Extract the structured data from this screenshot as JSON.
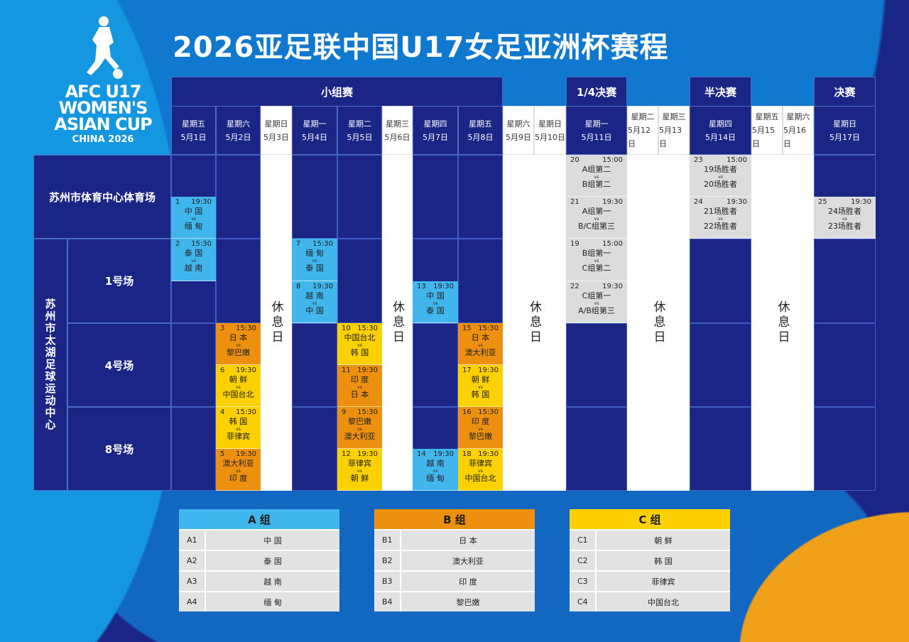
{
  "title": "2026亚足联中国U17女足亚洲杯赛程",
  "logo": {
    "line1": "AFC U17",
    "line2": "WOMEN'S",
    "line3": "ASIAN CUP",
    "line4": "CHINA 2026"
  },
  "colors": {
    "navy": "#1b2585",
    "group_a": "#41b6ec",
    "group_b": "#ee900f",
    "group_c": "#fdd100",
    "knockout": "#dcdcdc",
    "rest": "#ffffff"
  },
  "rest_label": "休息日",
  "vs_label": "vs",
  "dates": [
    {
      "week": "星期五",
      "date": "5月1日",
      "rest": false
    },
    {
      "week": "星期六",
      "date": "5月2日",
      "rest": false
    },
    {
      "week": "星期日",
      "date": "5月3日",
      "rest": true
    },
    {
      "week": "星期一",
      "date": "5月4日",
      "rest": false
    },
    {
      "week": "星期二",
      "date": "5月5日",
      "rest": false
    },
    {
      "week": "星期三",
      "date": "5月6日",
      "rest": true
    },
    {
      "week": "星期四",
      "date": "5月7日",
      "rest": false
    },
    {
      "week": "星期五",
      "date": "5月8日",
      "rest": false
    },
    {
      "week": "星期六",
      "date": "5月9日",
      "rest": true
    },
    {
      "week": "星期日",
      "date": "5月10日",
      "rest": true
    },
    {
      "week": "星期一",
      "date": "5月11日",
      "rest": false
    },
    {
      "week": "星期二",
      "date": "5月12日",
      "rest": true
    },
    {
      "week": "星期三",
      "date": "5月13日",
      "rest": true
    },
    {
      "week": "星期四",
      "date": "5月14日",
      "rest": false
    },
    {
      "week": "星期五",
      "date": "5月15日",
      "rest": true
    },
    {
      "week": "星期六",
      "date": "5月16日",
      "rest": true
    },
    {
      "week": "星期日",
      "date": "5月17日",
      "rest": false
    }
  ],
  "stages": [
    {
      "label": "小组赛",
      "from": "5月1日",
      "to": "5月8日"
    },
    {
      "label": "1/4决赛",
      "from": "5月11日",
      "to": "5月11日"
    },
    {
      "label": "半决赛",
      "from": "5月14日",
      "to": "5月14日"
    },
    {
      "label": "决赛",
      "from": "5月17日",
      "to": "5月17日"
    }
  ],
  "venues": {
    "stadium": "苏州市体育中心体育场",
    "complex": "苏州市太湖足球运动中心",
    "pitches": [
      "1号场",
      "4号场",
      "8号场"
    ]
  },
  "matches": [
    {
      "no": "1",
      "time": "19:30",
      "date": "5月1日",
      "venue": "苏州市体育中心体育场",
      "home": "中 国",
      "away": "缅 甸",
      "group": "A"
    },
    {
      "no": "2",
      "time": "15:30",
      "date": "5月1日",
      "venue": "1号场",
      "home": "泰 国",
      "away": "越 南",
      "group": "A"
    },
    {
      "no": "3",
      "time": "15:30",
      "date": "5月2日",
      "venue": "4号场",
      "home": "日 本",
      "away": "黎巴嫩",
      "group": "B"
    },
    {
      "no": "6",
      "time": "19:30",
      "date": "5月2日",
      "venue": "4号场",
      "home": "朝 鲜",
      "away": "中国台北",
      "group": "C"
    },
    {
      "no": "4",
      "time": "15:30",
      "date": "5月2日",
      "venue": "8号场",
      "home": "韩 国",
      "away": "菲律宾",
      "group": "C"
    },
    {
      "no": "5",
      "time": "19:30",
      "date": "5月2日",
      "venue": "8号场",
      "home": "澳大利亚",
      "away": "印 度",
      "group": "B"
    },
    {
      "no": "7",
      "time": "15:30",
      "date": "5月4日",
      "venue": "1号场",
      "home": "缅 甸",
      "away": "泰 国",
      "group": "A"
    },
    {
      "no": "8",
      "time": "19:30",
      "date": "5月4日",
      "venue": "1号场",
      "home": "越 南",
      "away": "中 国",
      "group": "A"
    },
    {
      "no": "10",
      "time": "15:30",
      "date": "5月5日",
      "venue": "4号场",
      "home": "中国台北",
      "away": "韩 国",
      "group": "C"
    },
    {
      "no": "11",
      "time": "19:30",
      "date": "5月5日",
      "venue": "4号场",
      "home": "印 度",
      "away": "日 本",
      "group": "B"
    },
    {
      "no": "9",
      "time": "15:30",
      "date": "5月5日",
      "venue": "8号场",
      "home": "黎巴嫩",
      "away": "澳大利亚",
      "group": "B"
    },
    {
      "no": "12",
      "time": "19:30",
      "date": "5月5日",
      "venue": "8号场",
      "home": "菲律宾",
      "away": "朝 鲜",
      "group": "C"
    },
    {
      "no": "13",
      "time": "19:30",
      "date": "5月7日",
      "venue": "1号场",
      "home": "中 国",
      "away": "泰 国",
      "group": "A"
    },
    {
      "no": "14",
      "time": "19:30",
      "date": "5月7日",
      "venue": "8号场",
      "home": "越 南",
      "away": "缅 甸",
      "group": "A"
    },
    {
      "no": "15",
      "time": "15:30",
      "date": "5月8日",
      "venue": "4号场",
      "home": "日 本",
      "away": "澳大利亚",
      "group": "B"
    },
    {
      "no": "17",
      "time": "19:30",
      "date": "5月8日",
      "venue": "4号场",
      "home": "朝 鲜",
      "away": "韩 国",
      "group": "C"
    },
    {
      "no": "16",
      "time": "15:30",
      "date": "5月8日",
      "venue": "8号场",
      "home": "印 度",
      "away": "黎巴嫩",
      "group": "B"
    },
    {
      "no": "18",
      "time": "19:30",
      "date": "5月8日",
      "venue": "8号场",
      "home": "菲律宾",
      "away": "中国台北",
      "group": "C"
    },
    {
      "no": "20",
      "time": "15:00",
      "date": "5月11日",
      "venue": "苏州市体育中心体育场",
      "home": "A组第二",
      "away": "B组第二",
      "group": "KO"
    },
    {
      "no": "21",
      "time": "19:30",
      "date": "5月11日",
      "venue": "苏州市体育中心体育场",
      "home": "A组第一",
      "away": "B/C组第三",
      "group": "KO"
    },
    {
      "no": "19",
      "time": "15:00",
      "date": "5月11日",
      "venue": "1号场",
      "home": "B组第一",
      "away": "C组第二",
      "group": "KO"
    },
    {
      "no": "22",
      "time": "19:30",
      "date": "5月11日",
      "venue": "1号场",
      "home": "C组第一",
      "away": "A/B组第三",
      "group": "KO"
    },
    {
      "no": "23",
      "time": "15:00",
      "date": "5月14日",
      "venue": "苏州市体育中心体育场",
      "home": "19场胜者",
      "away": "20场胜者",
      "group": "KO"
    },
    {
      "no": "24",
      "time": "19:30",
      "date": "5月14日",
      "venue": "苏州市体育中心体育场",
      "home": "21场胜者",
      "away": "22场胜者",
      "group": "KO"
    },
    {
      "no": "25",
      "time": "19:30",
      "date": "5月17日",
      "venue": "苏州市体育中心体育场",
      "home": "24场胜者",
      "away": "23场胜者",
      "group": "KO"
    }
  ],
  "groups": [
    {
      "title": "A 组",
      "key": "A",
      "teams": [
        {
          "id": "A1",
          "name": "中 国"
        },
        {
          "id": "A2",
          "name": "泰 国"
        },
        {
          "id": "A3",
          "name": "越 南"
        },
        {
          "id": "A4",
          "name": "缅 甸"
        }
      ]
    },
    {
      "title": "B 组",
      "key": "B",
      "teams": [
        {
          "id": "B1",
          "name": "日 本"
        },
        {
          "id": "B2",
          "name": "澳大利亚"
        },
        {
          "id": "B3",
          "name": "印 度"
        },
        {
          "id": "B4",
          "name": "黎巴嫩"
        }
      ]
    },
    {
      "title": "C 组",
      "key": "C",
      "teams": [
        {
          "id": "C1",
          "name": "朝 鲜"
        },
        {
          "id": "C2",
          "name": "韩 国"
        },
        {
          "id": "C3",
          "name": "菲律宾"
        },
        {
          "id": "C4",
          "name": "中国台北"
        }
      ]
    }
  ]
}
